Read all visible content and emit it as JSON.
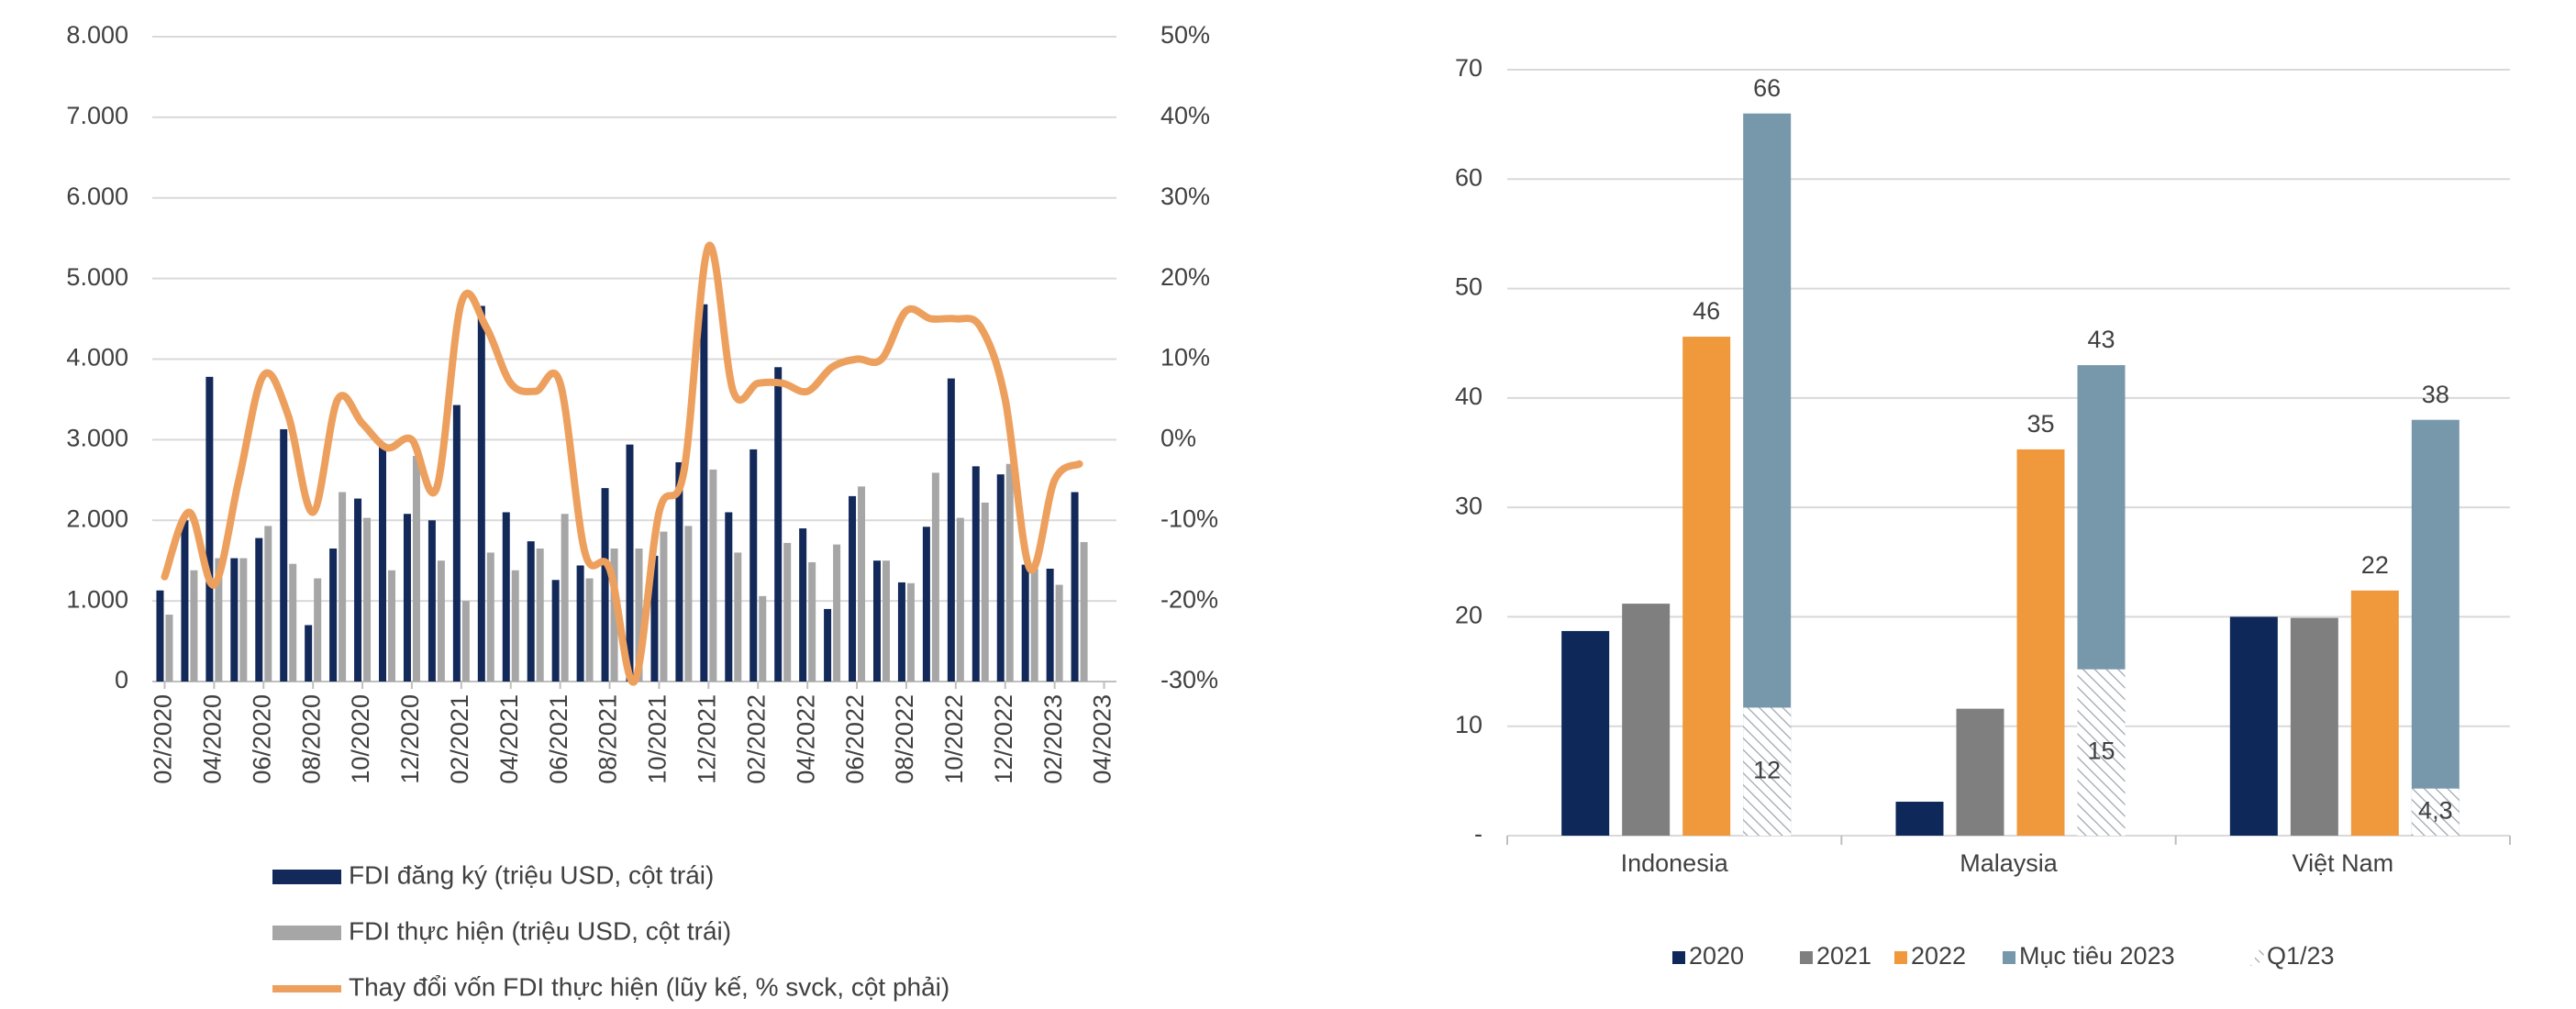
{
  "chart_data": [
    {
      "type": "combo",
      "categories": [
        "02/2020",
        null,
        "04/2020",
        null,
        "06/2020",
        null,
        "08/2020",
        null,
        "10/2020",
        null,
        "12/2020",
        null,
        "02/2021",
        null,
        "04/2021",
        null,
        "06/2021",
        null,
        "08/2021",
        null,
        "10/2021",
        null,
        "12/2021",
        null,
        "02/2022",
        null,
        "04/2022",
        null,
        "06/2022",
        null,
        "08/2022",
        null,
        "10/2022",
        null,
        "12/2022",
        null,
        "02/2023",
        null,
        "04/2023"
      ],
      "series": [
        {
          "name": "FDI đăng ký (triệu USD, cột trái)",
          "type": "bar",
          "color": "#13295a",
          "values": [
            1130,
            2000,
            3780,
            1530,
            1780,
            3130,
            700,
            1650,
            2270,
            2950,
            2080,
            2000,
            3430,
            4660,
            2100,
            1740,
            1260,
            1440,
            2400,
            2940,
            1560,
            2720,
            4680,
            2100,
            2880,
            3900,
            1900,
            900,
            2300,
            1500,
            1230,
            1920,
            3760,
            2670,
            2570,
            1450,
            1400,
            2350,
            null
          ]
        },
        {
          "name": "FDI thực hiện (triệu USD, cột trái)",
          "type": "bar",
          "color": "#a6a6a6",
          "values": [
            830,
            1380,
            1530,
            1530,
            1930,
            1460,
            1280,
            2350,
            2030,
            1380,
            2800,
            1500,
            1000,
            1600,
            1380,
            1650,
            2080,
            1280,
            1650,
            1650,
            1860,
            1930,
            2630,
            1600,
            1060,
            1720,
            1480,
            1700,
            2420,
            1500,
            1220,
            2590,
            2030,
            2220,
            2700,
            1400,
            1200,
            1730,
            null
          ]
        },
        {
          "name": "Thay đổi vốn FDI thực hiện (lũy kế, % svck, cột phải)",
          "type": "line",
          "axis": "y2",
          "color": "#eda05e",
          "values": [
            -17,
            -9,
            -18,
            -5,
            8,
            3,
            -9,
            5,
            2,
            -1,
            0,
            -6,
            17,
            14,
            7,
            6,
            7,
            -14,
            -16,
            -30,
            -9,
            -4,
            24,
            6,
            7,
            7,
            6,
            9,
            10,
            10,
            16,
            15,
            15,
            14,
            5,
            -16,
            -5,
            -3,
            null
          ]
        }
      ],
      "ylim": [
        0,
        8000
      ],
      "yticks": [
        {
          "value": 0,
          "label": "0"
        },
        {
          "value": 1000,
          "label": "1.000"
        },
        {
          "value": 2000,
          "label": "2.000"
        },
        {
          "value": 3000,
          "label": "3.000"
        },
        {
          "value": 4000,
          "label": "4.000"
        },
        {
          "value": 5000,
          "label": "5.000"
        },
        {
          "value": 6000,
          "label": "6.000"
        },
        {
          "value": 7000,
          "label": "7.000"
        },
        {
          "value": 8000,
          "label": "8.000"
        }
      ],
      "y2lim": [
        -30,
        50
      ],
      "y2ticks": [
        {
          "value": -30,
          "label": "-30%"
        },
        {
          "value": -20,
          "label": "-20%"
        },
        {
          "value": -10,
          "label": "-10%"
        },
        {
          "value": 0,
          "label": "0%"
        },
        {
          "value": 10,
          "label": "10%"
        },
        {
          "value": 20,
          "label": "20%"
        },
        {
          "value": 30,
          "label": "30%"
        },
        {
          "value": 40,
          "label": "40%"
        },
        {
          "value": 50,
          "label": "50%"
        }
      ],
      "grid": true
    },
    {
      "type": "bar",
      "categories": [
        "Indonesia",
        "Malaysia",
        "Việt Nam"
      ],
      "series": [
        {
          "name": "2020",
          "color": "#0d2859",
          "values": [
            18.7,
            3.1,
            20
          ]
        },
        {
          "name": "2021",
          "color": "#7f7f7f",
          "values": [
            21.2,
            11.6,
            19.9
          ]
        },
        {
          "name": "2022",
          "color": "#f0993c",
          "values": [
            45.6,
            35.3,
            22.4
          ],
          "value_labels": [
            "46",
            "35",
            "22"
          ],
          "data_labels": true
        },
        {
          "name": "Mục tiêu 2023",
          "color": "#7798ab",
          "values": [
            66,
            43,
            38
          ],
          "data_labels": true
        },
        {
          "name": "Q1/23",
          "pattern": "hatch",
          "color": "#9aa7b0",
          "values": [
            11.7,
            15.2,
            4.3
          ],
          "value_labels": [
            "12",
            "15",
            "4,3"
          ],
          "data_labels": true
        }
      ],
      "ylim": [
        0,
        70
      ],
      "yticks": [
        {
          "value": 0,
          "label": "-"
        },
        10,
        20,
        30,
        40,
        50,
        60,
        70
      ],
      "grid": true
    }
  ]
}
